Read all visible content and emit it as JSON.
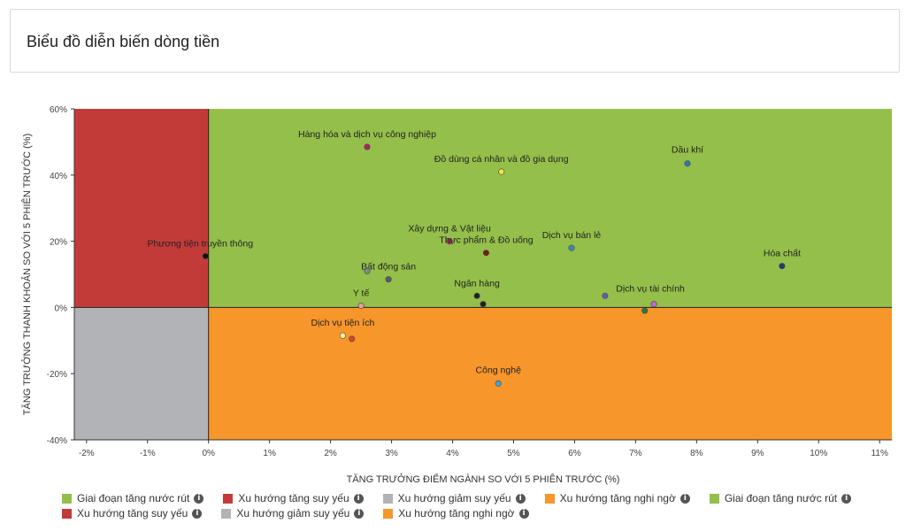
{
  "header": {
    "title": "Biểu đồ diễn biến dòng tiền"
  },
  "chart_data": {
    "type": "scatter",
    "title": "",
    "xlabel": "TĂNG TRƯỞNG ĐIỂM NGÀNH SO VỚI 5 PHIÊN TRƯỚC (%)",
    "ylabel": "TĂNG TRƯỞNG THANH KHOẢN SO VỚI 5 PHIÊN TRƯỚC (%)",
    "xlim": [
      -2.2,
      11.2
    ],
    "ylim": [
      -40,
      60
    ],
    "x_ticks": [
      -2,
      -1,
      0,
      1,
      2,
      3,
      4,
      5,
      6,
      7,
      8,
      9,
      10,
      11
    ],
    "x_tick_labels": [
      "-2%",
      "-1%",
      "0%",
      "1%",
      "2%",
      "3%",
      "4%",
      "5%",
      "6%",
      "7%",
      "8%",
      "9%",
      "10%",
      "11%"
    ],
    "y_ticks": [
      -40,
      -20,
      0,
      20,
      40,
      60
    ],
    "y_tick_labels": [
      "-40%",
      "-20%",
      "0%",
      "20%",
      "40%",
      "60%"
    ],
    "quadrants": [
      {
        "name": "top-right",
        "color": "#94bf4a"
      },
      {
        "name": "top-left",
        "color": "#c23b39"
      },
      {
        "name": "bottom-left",
        "color": "#b2b3b7"
      },
      {
        "name": "bottom-right",
        "color": "#f7962b"
      }
    ],
    "points": [
      {
        "label": "Hàng hóa và dịch vụ công nghiệp",
        "x": 2.6,
        "y": 48.5,
        "color": "#b0206a",
        "label_anchor": "middle",
        "label_dy": -11
      },
      {
        "label": "Đồ dùng cá nhân và đồ gia dụng",
        "x": 4.8,
        "y": 41.0,
        "color": "#f2e43a",
        "label_anchor": "middle",
        "label_dy": -11
      },
      {
        "label": "Dầu khí",
        "x": 7.85,
        "y": 43.5,
        "color": "#2f76b8",
        "label_anchor": "middle",
        "label_dy": -12
      },
      {
        "label": "Phương tiện truyền thông",
        "x": -0.05,
        "y": 15.5,
        "color": "#111111",
        "label_anchor": "middle",
        "label_dx": -6,
        "label_dy": -11
      },
      {
        "label": "Xây dựng & Vật liệu",
        "x": 3.95,
        "y": 20.0,
        "color": "#c1216b",
        "label_anchor": "middle",
        "label_dy": -11
      },
      {
        "label": "Thực phẩm & Đồ uống",
        "x": 4.55,
        "y": 16.5,
        "color": "#7a1a1a",
        "label_anchor": "middle",
        "label_dy": -11
      },
      {
        "label": "Dịch vụ bán lẻ",
        "x": 5.95,
        "y": 18.0,
        "color": "#3f86c0",
        "label_anchor": "middle",
        "label_dy": -11
      },
      {
        "label": "Hóa chất",
        "x": 9.4,
        "y": 12.5,
        "color": "#2a357a",
        "label_anchor": "middle",
        "label_dy": -11
      },
      {
        "label": "Bất động sản",
        "x": 2.95,
        "y": 8.5,
        "color": "#5a5a68",
        "label_anchor": "middle",
        "label_dy": -11
      },
      {
        "label": "",
        "x": 2.6,
        "y": 11.0,
        "color": "#888888",
        "label_anchor": "middle",
        "label_dy": -11
      },
      {
        "label": "Ngân hàng",
        "x": 4.4,
        "y": 3.5,
        "color": "#222222",
        "label_anchor": "middle",
        "label_dy": -11
      },
      {
        "label": "",
        "x": 4.5,
        "y": 1.0,
        "color": "#222222",
        "label_anchor": "middle",
        "label_dy": -11
      },
      {
        "label": "Y tế",
        "x": 2.5,
        "y": 0.5,
        "color": "#f29a9a",
        "label_anchor": "middle",
        "label_dy": -11
      },
      {
        "label": "",
        "x": 6.5,
        "y": 3.5,
        "color": "#6a5ab0",
        "label_anchor": "middle",
        "label_dy": -11
      },
      {
        "label": "Dịch vụ tài chính",
        "x": 7.3,
        "y": 1.0,
        "color": "#c06ad8",
        "label_anchor": "middle",
        "label_dx": -4,
        "label_dy": -14
      },
      {
        "label": "",
        "x": 7.15,
        "y": -1.0,
        "color": "#2f7a3a",
        "label_anchor": "middle",
        "label_dy": -11
      },
      {
        "label": "Dịch vụ tiện ích",
        "x": 2.2,
        "y": -8.5,
        "color": "#f5f09a",
        "label_anchor": "middle",
        "label_dy": -11
      },
      {
        "label": "",
        "x": 2.35,
        "y": -9.5,
        "color": "#d24a2a",
        "label_anchor": "middle",
        "label_dy": -11
      },
      {
        "label": "Công nghệ",
        "x": 4.75,
        "y": -23.0,
        "color": "#3aa6e0",
        "label_anchor": "middle",
        "label_dy": -12
      }
    ],
    "legend": {
      "placement": "bottom",
      "rows": [
        [
          {
            "label": "Giai đoạn tăng nước rút",
            "color": "#94bf4a"
          },
          {
            "label": "Xu hướng tăng suy yếu",
            "color": "#c23b39"
          },
          {
            "label": "Xu hướng giảm suy yếu",
            "color": "#b2b3b7"
          },
          {
            "label": "Xu hướng tăng nghi ngờ",
            "color": "#f7962b"
          },
          {
            "label": "Giai đoạn tăng nước rút",
            "color": "#94bf4a"
          }
        ],
        [
          {
            "label": "Xu hướng tăng suy yếu",
            "color": "#c23b39"
          },
          {
            "label": "Xu hướng giảm suy yếu",
            "color": "#b2b3b7"
          },
          {
            "label": "Xu hướng tăng nghi ngờ",
            "color": "#f7962b"
          }
        ]
      ]
    }
  }
}
